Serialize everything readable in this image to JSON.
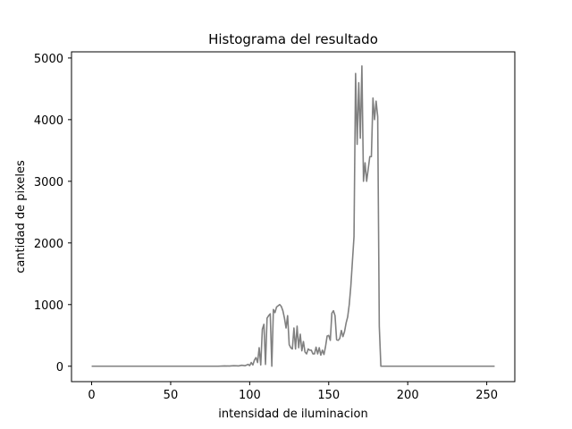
{
  "chart_data": {
    "type": "line",
    "title": "Histograma  del resultado",
    "xlabel": "intensidad de iluminacion",
    "ylabel": "cantidad de pixeles",
    "xlim": [
      -12.75,
      267.75
    ],
    "ylim": [
      -250,
      5100
    ],
    "xticks": [
      0,
      50,
      100,
      150,
      200,
      250
    ],
    "yticks": [
      0,
      1000,
      2000,
      3000,
      4000,
      5000
    ],
    "grid": false,
    "legend": "none",
    "series": [
      {
        "color": "#808080",
        "x": [
          0,
          80,
          84,
          87,
          90,
          93,
          95,
          97,
          99,
          100,
          101,
          102,
          103,
          104,
          105,
          106,
          107,
          108,
          109,
          110,
          111,
          112,
          113,
          114,
          115,
          116,
          117,
          118,
          119,
          120,
          121,
          122,
          123,
          124,
          125,
          126,
          127,
          128,
          129,
          130,
          131,
          132,
          133,
          134,
          135,
          136,
          137,
          138,
          139,
          140,
          141,
          142,
          143,
          144,
          145,
          146,
          147,
          148,
          149,
          150,
          151,
          152,
          153,
          154,
          155,
          156,
          157,
          158,
          159,
          160,
          161,
          162,
          163,
          164,
          165,
          166,
          167,
          168,
          169,
          170,
          171,
          172,
          173,
          174,
          175,
          176,
          177,
          178,
          179,
          180,
          181,
          182,
          183,
          184,
          185,
          186,
          187,
          188,
          189,
          190,
          191,
          192,
          193,
          194,
          195,
          200,
          255
        ],
        "values": [
          0,
          0,
          5,
          3,
          8,
          5,
          15,
          8,
          30,
          10,
          60,
          20,
          100,
          140,
          60,
          300,
          20,
          600,
          680,
          30,
          780,
          820,
          850,
          0,
          920,
          870,
          960,
          980,
          1000,
          970,
          900,
          780,
          620,
          820,
          350,
          300,
          280,
          620,
          280,
          650,
          300,
          520,
          250,
          400,
          230,
          200,
          280,
          260,
          260,
          200,
          200,
          310,
          200,
          300,
          180,
          260,
          190,
          320,
          490,
          500,
          420,
          860,
          900,
          820,
          430,
          420,
          450,
          580,
          480,
          560,
          700,
          800,
          1000,
          1300,
          1700,
          2100,
          4750,
          3600,
          4600,
          3700,
          4870,
          3000,
          3300,
          3000,
          3200,
          3400,
          3400,
          4350,
          4000,
          4300,
          4050,
          650,
          0,
          0,
          0,
          0,
          0,
          0,
          0,
          0,
          0,
          0,
          0,
          0,
          0,
          0,
          0
        ]
      }
    ]
  }
}
